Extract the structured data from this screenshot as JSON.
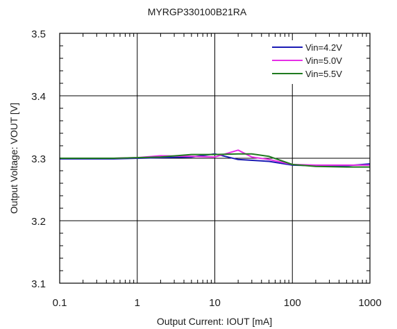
{
  "chart_data": {
    "type": "line",
    "title": "MYRGP330100B21RA",
    "xlabel": "Output  Current: IOUT [mA]",
    "ylabel": "Output  Voltage: VOUT [V]",
    "xscale": "log",
    "xlim": [
      0.1,
      1000
    ],
    "ylim": [
      3.1,
      3.5
    ],
    "xticks": [
      "0.1",
      "1",
      "10",
      "100",
      "1000"
    ],
    "yticks": [
      "3.1",
      "3.2",
      "3.3",
      "3.4",
      "3.5"
    ],
    "grid": true,
    "legend_position": "top-right",
    "series": [
      {
        "name": "Vin=4.2V",
        "color": "#1a1ab4",
        "x": [
          0.1,
          0.5,
          1,
          2,
          5,
          10,
          20,
          50,
          100,
          200,
          500,
          1000
        ],
        "y": [
          3.299,
          3.299,
          3.3,
          3.301,
          3.302,
          3.307,
          3.298,
          3.295,
          3.289,
          3.288,
          3.288,
          3.291
        ]
      },
      {
        "name": "Vin=5.0V",
        "color": "#e62ee6",
        "x": [
          0.1,
          0.5,
          1,
          2,
          5,
          10,
          20,
          30,
          50,
          100,
          200,
          500,
          1000
        ],
        "y": [
          3.3,
          3.3,
          3.301,
          3.304,
          3.303,
          3.302,
          3.313,
          3.302,
          3.298,
          3.29,
          3.289,
          3.289,
          3.289
        ]
      },
      {
        "name": "Vin=5.5V",
        "color": "#1f7a1f",
        "x": [
          0.1,
          0.5,
          1,
          2,
          5,
          10,
          20,
          30,
          50,
          100,
          200,
          500,
          1000
        ],
        "y": [
          3.3,
          3.3,
          3.301,
          3.302,
          3.306,
          3.306,
          3.307,
          3.307,
          3.303,
          3.29,
          3.287,
          3.286,
          3.286
        ]
      }
    ]
  }
}
